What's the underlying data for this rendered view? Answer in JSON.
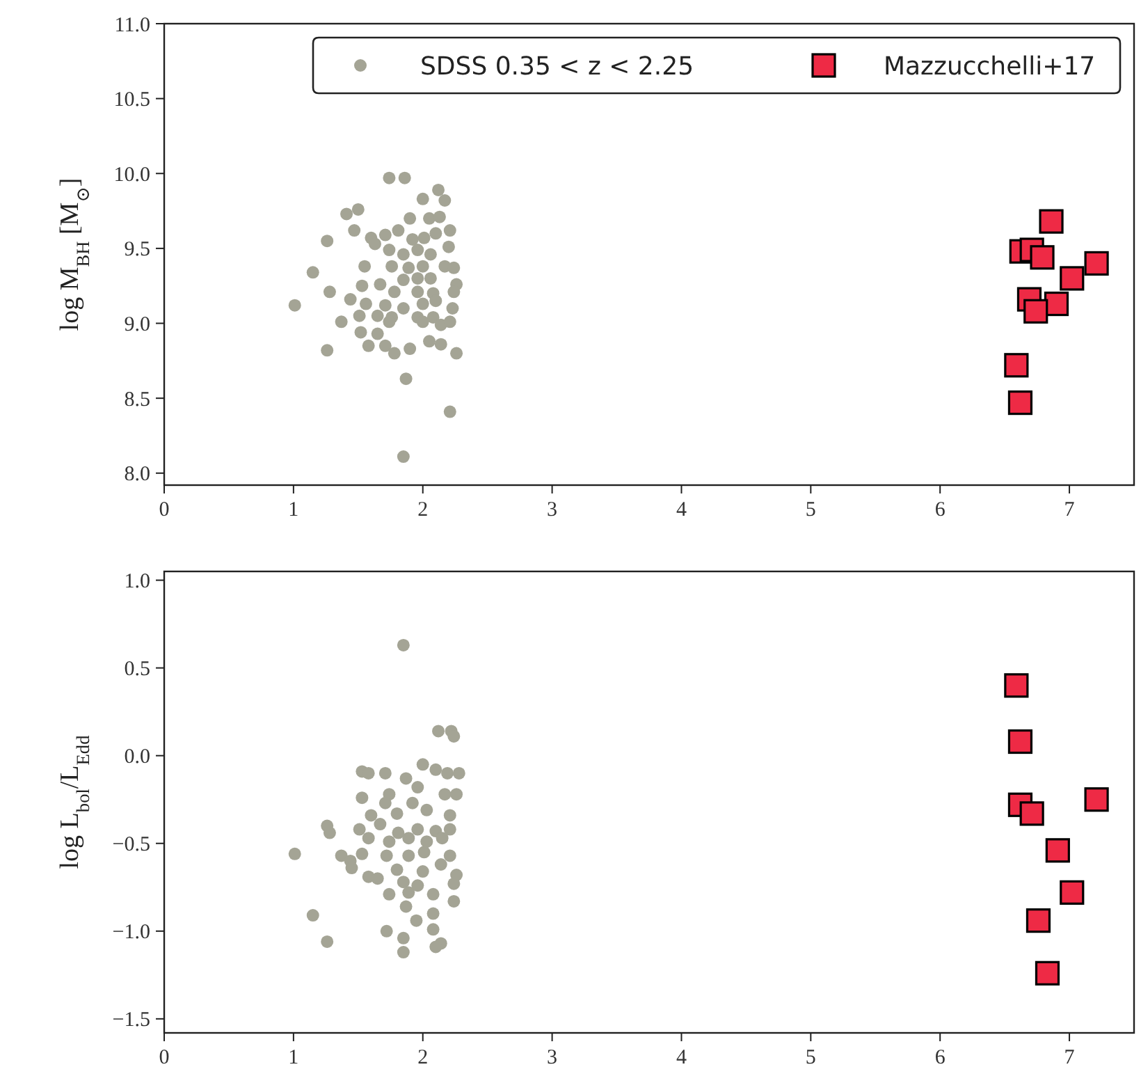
{
  "chart_data": [
    {
      "type": "scatter",
      "ylabel": "log M$_{BH}$ [M$_{⊙}$]",
      "xlim": [
        0,
        7.5
      ],
      "ylim": [
        7.92,
        11.0
      ],
      "xticks": [
        0,
        1,
        2,
        3,
        4,
        5,
        6,
        7
      ],
      "yticks": [
        {
          "value": 8,
          "label": "8.0"
        },
        {
          "value": 8.5,
          "label": "8.5"
        },
        {
          "value": 9,
          "label": "9.0"
        },
        {
          "value": 9.5,
          "label": "9.5"
        },
        {
          "value": 10,
          "label": "10.0"
        },
        {
          "value": 10.5,
          "label": "10.5"
        },
        {
          "value": 11,
          "label": "11.0"
        }
      ],
      "legend": "top right",
      "grid": false,
      "series": [
        {
          "name": "SDSS 0.35 < z < 2.25",
          "color": "#a4a495",
          "marker": "circle",
          "x": [
            1.74,
            1.86,
            2.12,
            2.0,
            2.17,
            1.41,
            1.5,
            1.47,
            1.26,
            1.9,
            2.05,
            2.13,
            2.21,
            1.6,
            1.71,
            1.81,
            1.92,
            2.01,
            2.1,
            2.2,
            1.63,
            1.74,
            1.85,
            1.96,
            2.06,
            1.55,
            1.76,
            1.89,
            2.0,
            2.17,
            2.24,
            1.15,
            1.85,
            1.96,
            2.06,
            2.26,
            2.24,
            1.28,
            1.53,
            1.67,
            1.78,
            1.96,
            2.08,
            1.44,
            1.56,
            1.71,
            1.85,
            2.0,
            2.1,
            1.01,
            1.51,
            1.65,
            1.76,
            1.96,
            2.08,
            2.23,
            1.37,
            1.74,
            2.0,
            2.14,
            2.21,
            1.52,
            1.65,
            2.05,
            2.14,
            2.26,
            1.58,
            1.71,
            1.78,
            1.9,
            1.26,
            1.87,
            2.21,
            1.85
          ],
          "values": [
            9.97,
            9.97,
            9.89,
            9.83,
            9.82,
            9.73,
            9.76,
            9.62,
            9.55,
            9.7,
            9.7,
            9.71,
            9.62,
            9.57,
            9.59,
            9.62,
            9.56,
            9.57,
            9.6,
            9.51,
            9.53,
            9.49,
            9.46,
            9.49,
            9.46,
            9.38,
            9.38,
            9.37,
            9.38,
            9.38,
            9.37,
            9.34,
            9.29,
            9.3,
            9.3,
            9.26,
            9.21,
            9.21,
            9.25,
            9.26,
            9.21,
            9.21,
            9.2,
            9.16,
            9.13,
            9.12,
            9.1,
            9.13,
            9.15,
            9.12,
            9.05,
            9.05,
            9.04,
            9.04,
            9.04,
            9.1,
            9.01,
            9.01,
            9.01,
            8.99,
            9.01,
            8.94,
            8.93,
            8.88,
            8.86,
            8.8,
            8.85,
            8.85,
            8.8,
            8.83,
            8.82,
            8.63,
            8.41,
            8.11
          ]
        },
        {
          "name": "Mazzucchelli+17",
          "color": "#ee2a45",
          "marker": "square",
          "x": [
            6.86,
            6.63,
            6.71,
            6.79,
            7.21,
            7.02,
            6.69,
            6.9,
            6.74,
            6.59,
            6.62
          ],
          "values": [
            9.68,
            9.48,
            9.49,
            9.44,
            9.4,
            9.3,
            9.16,
            9.13,
            9.08,
            8.72,
            8.47
          ]
        }
      ]
    },
    {
      "type": "scatter",
      "ylabel": "log L$_{bol}$/L$_{Edd}$",
      "xlim": [
        0,
        7.5
      ],
      "ylim": [
        -1.58,
        1.05
      ],
      "xticks": [
        0,
        1,
        2,
        3,
        4,
        5,
        6,
        7
      ],
      "yticks": [
        {
          "value": -1.5,
          "label": "−1.5"
        },
        {
          "value": -1,
          "label": "−1.0"
        },
        {
          "value": -0.5,
          "label": "−0.5"
        },
        {
          "value": 0,
          "label": "0.0"
        },
        {
          "value": 0.5,
          "label": "0.5"
        },
        {
          "value": 1,
          "label": "1.0"
        }
      ],
      "grid": false,
      "series": [
        {
          "color": "#a4a495",
          "marker": "circle",
          "x": [
            1.85,
            2.12,
            2.22,
            2.24,
            1.53,
            1.58,
            1.71,
            1.87,
            2.0,
            2.1,
            2.19,
            2.28,
            1.96,
            2.17,
            2.26,
            1.53,
            1.74,
            1.71,
            1.92,
            2.03,
            2.21,
            1.6,
            1.8,
            1.26,
            1.28,
            1.51,
            1.67,
            1.81,
            1.96,
            2.1,
            2.21,
            1.58,
            1.74,
            1.89,
            2.03,
            2.15,
            1.01,
            1.37,
            1.44,
            1.53,
            1.72,
            1.89,
            2.01,
            2.21,
            1.45,
            1.58,
            1.65,
            1.8,
            1.85,
            2.0,
            2.14,
            2.26,
            1.74,
            1.89,
            1.96,
            2.08,
            2.24,
            2.24,
            1.87,
            1.95,
            2.08,
            1.15,
            1.72,
            1.85,
            2.08,
            2.14,
            2.1,
            1.26,
            1.85
          ],
          "values": [
            0.63,
            0.14,
            0.14,
            0.11,
            -0.09,
            -0.1,
            -0.1,
            -0.13,
            -0.05,
            -0.08,
            -0.1,
            -0.1,
            -0.18,
            -0.22,
            -0.22,
            -0.24,
            -0.22,
            -0.27,
            -0.27,
            -0.31,
            -0.34,
            -0.34,
            -0.33,
            -0.4,
            -0.44,
            -0.42,
            -0.39,
            -0.44,
            -0.42,
            -0.43,
            -0.42,
            -0.47,
            -0.49,
            -0.47,
            -0.49,
            -0.47,
            -0.56,
            -0.57,
            -0.6,
            -0.56,
            -0.57,
            -0.57,
            -0.55,
            -0.57,
            -0.64,
            -0.69,
            -0.7,
            -0.65,
            -0.72,
            -0.66,
            -0.62,
            -0.68,
            -0.79,
            -0.78,
            -0.74,
            -0.79,
            -0.73,
            -0.83,
            -0.86,
            -0.94,
            -0.9,
            -0.91,
            -1.0,
            -1.04,
            -0.99,
            -1.07,
            -1.09,
            -1.06,
            -1.12
          ]
        },
        {
          "color": "#ee2a45",
          "marker": "square",
          "x": [
            6.59,
            6.62,
            6.62,
            6.71,
            7.21,
            6.91,
            7.02,
            6.76,
            6.83
          ],
          "values": [
            0.4,
            0.08,
            -0.28,
            -0.33,
            -0.25,
            -0.54,
            -0.78,
            -0.94,
            -1.24
          ]
        }
      ]
    }
  ]
}
